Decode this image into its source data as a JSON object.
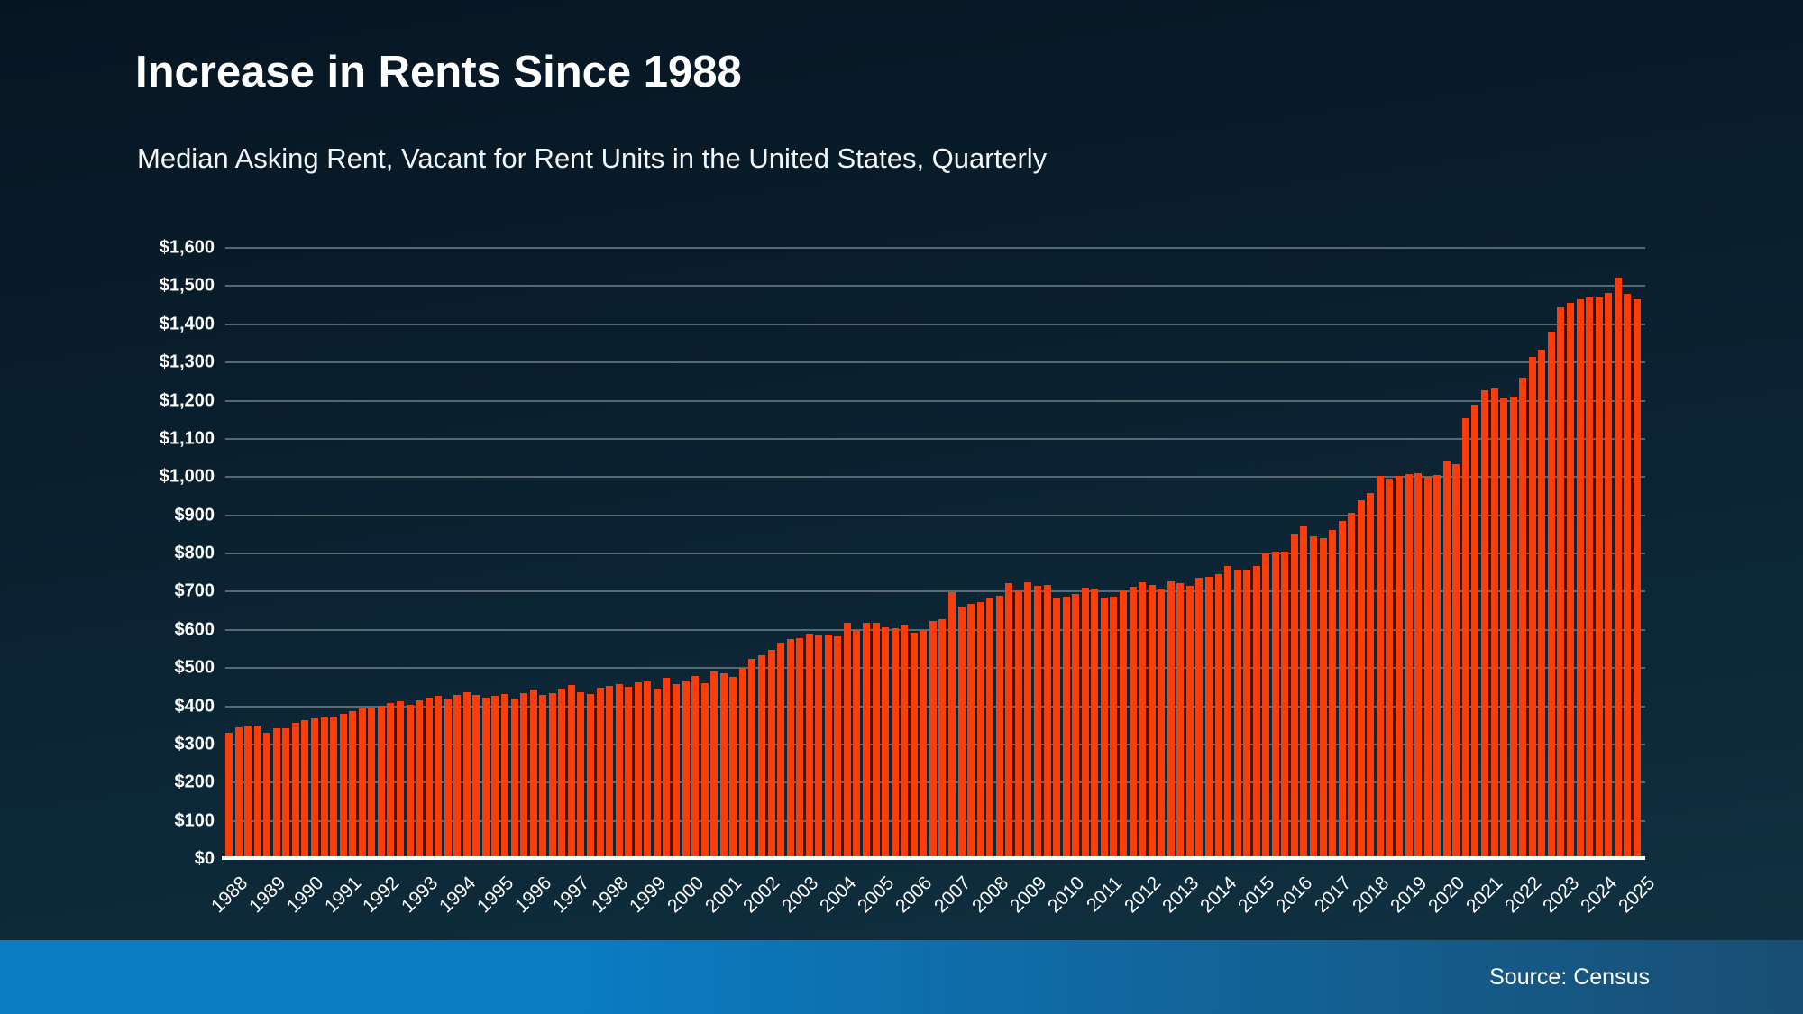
{
  "page": {
    "title": "Increase in Rents Since 1988",
    "subtitle": "Median Asking Rent, Vacant for Rent Units in the United States, Quarterly",
    "source_label": "Source: Census"
  },
  "colors": {
    "bar": "#fb3d0b",
    "gridline": "#66757d",
    "axis_line": "#ffffff",
    "text": "#ffffff",
    "background_top": "#071522",
    "background_bottom": "#113344",
    "footer_left": "#0a7cc3",
    "footer_right": "#194e73"
  },
  "y_axis": {
    "tick_labels": [
      "$0",
      "$100",
      "$200",
      "$300",
      "$400",
      "$500",
      "$600",
      "$700",
      "$800",
      "$900",
      "$1,000",
      "$1,100",
      "$1,200",
      "$1,300",
      "$1,400",
      "$1,500",
      "$1,600"
    ],
    "tick_values": [
      0,
      100,
      200,
      300,
      400,
      500,
      600,
      700,
      800,
      900,
      1000,
      1100,
      1200,
      1300,
      1400,
      1500,
      1600
    ]
  },
  "x_axis": {
    "years": [
      1988,
      1989,
      1990,
      1991,
      1992,
      1993,
      1994,
      1995,
      1996,
      1997,
      1998,
      1999,
      2000,
      2001,
      2002,
      2003,
      2004,
      2005,
      2006,
      2007,
      2008,
      2009,
      2010,
      2011,
      2012,
      2013,
      2014,
      2015,
      2016,
      2017,
      2018,
      2019,
      2020,
      2021,
      2022,
      2023,
      2024,
      2025
    ]
  },
  "chart_data": {
    "type": "bar",
    "title": "Increase in Rents Since 1988",
    "subtitle": "Median Asking Rent, Vacant for Rent Units in the United States, Quarterly",
    "source": "Source: Census",
    "frequency": "quarterly",
    "start": "1988-Q1",
    "end": "2025-Q1",
    "unit": "USD",
    "ylim": [
      0,
      1600
    ],
    "ytick_step": 100,
    "grid": true,
    "legend": "none",
    "values_by_year": {
      "1988": [
        330,
        344,
        347,
        350
      ],
      "1989": [
        331,
        342,
        342,
        356
      ],
      "1990": [
        364,
        367,
        371,
        374
      ],
      "1991": [
        380,
        388,
        393,
        396
      ],
      "1992": [
        402,
        408,
        412,
        404
      ],
      "1993": [
        415,
        422,
        428,
        418
      ],
      "1994": [
        429,
        437,
        430,
        423
      ],
      "1995": [
        426,
        432,
        419,
        435
      ],
      "1996": [
        443,
        429,
        434,
        447
      ],
      "1997": [
        456,
        437,
        431,
        448
      ],
      "1998": [
        454,
        457,
        451,
        462
      ],
      "1999": [
        466,
        446,
        475,
        457
      ],
      "2000": [
        467,
        478,
        461,
        490
      ],
      "2001": [
        486,
        477,
        500,
        524
      ],
      "2002": [
        533,
        547,
        567,
        576
      ],
      "2003": [
        578,
        590,
        586,
        588
      ],
      "2004": [
        582,
        618,
        600,
        619
      ],
      "2005": [
        619,
        607,
        604,
        613
      ],
      "2006": [
        592,
        600,
        622,
        628
      ],
      "2007": [
        698,
        660,
        668,
        672
      ],
      "2008": [
        681,
        688,
        721,
        703
      ],
      "2009": [
        725,
        716,
        717,
        681
      ],
      "2010": [
        686,
        694,
        711,
        708
      ],
      "2011": [
        685,
        686,
        702,
        712
      ],
      "2012": [
        724,
        717,
        706,
        726
      ],
      "2013": [
        722,
        716,
        737,
        738
      ],
      "2014": [
        746,
        767,
        757,
        757
      ],
      "2015": [
        768,
        802,
        804,
        804
      ],
      "2016": [
        849,
        870,
        846,
        841
      ],
      "2017": [
        862,
        885,
        906,
        940
      ],
      "2018": [
        958,
        1003,
        997,
        1002
      ],
      "2019": [
        1007,
        1009,
        1000,
        1005
      ],
      "2020": [
        1040,
        1033,
        1155,
        1190
      ],
      "2021": [
        1227,
        1231,
        1207,
        1210
      ],
      "2022": [
        1259,
        1314,
        1334,
        1380
      ],
      "2023": [
        1445,
        1455,
        1465,
        1470
      ],
      "2024": [
        1470,
        1483,
        1523,
        1480
      ],
      "2025": [
        1465
      ]
    }
  }
}
